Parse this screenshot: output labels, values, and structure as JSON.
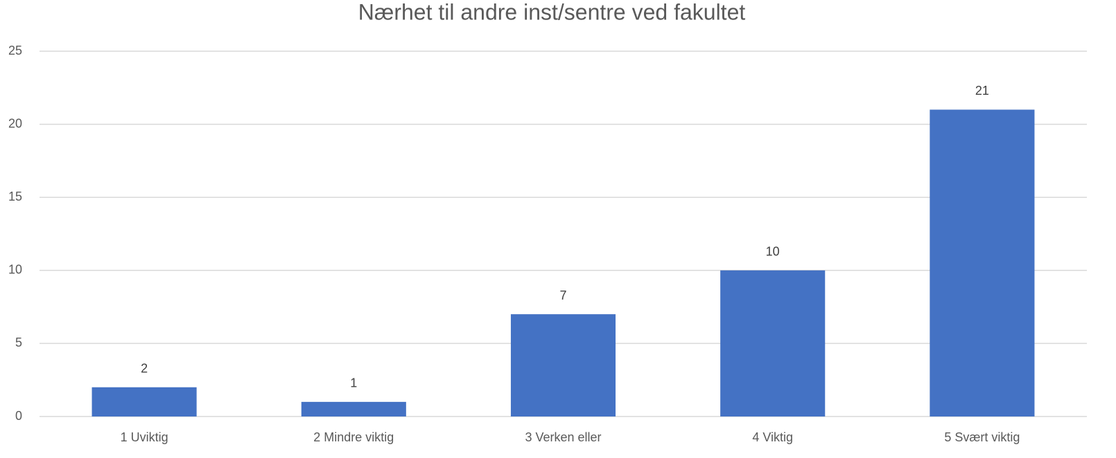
{
  "chart_data": {
    "type": "bar",
    "title": "Nærhet til andre inst/sentre ved fakultet",
    "categories": [
      "1 Uviktig",
      "2 Mindre viktig",
      "3 Verken eller",
      "4 Viktig",
      "5 Svært viktig"
    ],
    "values": [
      2,
      1,
      7,
      10,
      21
    ],
    "color": "#4472c4",
    "ylim": [
      0,
      25
    ],
    "yticks": [
      0,
      5,
      10,
      15,
      20,
      25
    ],
    "grid": true
  }
}
